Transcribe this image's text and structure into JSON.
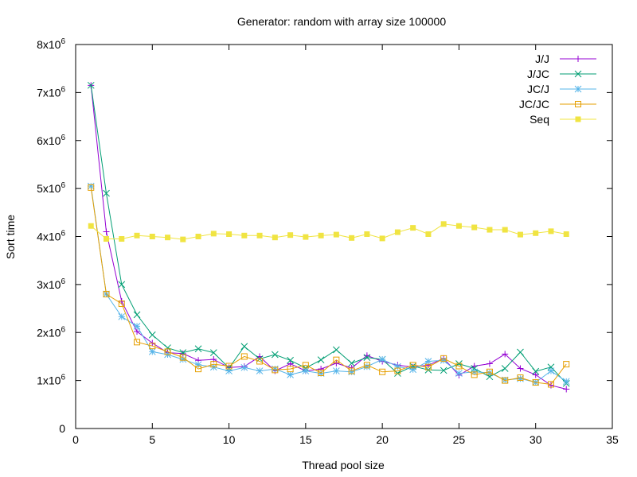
{
  "chart_data": {
    "type": "line",
    "title": "Generator: random with array size 100000",
    "xlabel": "Thread pool size",
    "ylabel": "Sort time",
    "xlim": [
      0,
      35
    ],
    "ylim": [
      0,
      8000000
    ],
    "grid": false,
    "legend_position": "top-right",
    "x_ticks": [
      0,
      5,
      10,
      15,
      20,
      25,
      30,
      35
    ],
    "y_ticks": [
      {
        "value": 0,
        "mantissa": "0",
        "exp": ""
      },
      {
        "value": 1000000,
        "mantissa": "1x10",
        "exp": "6"
      },
      {
        "value": 2000000,
        "mantissa": "2x10",
        "exp": "6"
      },
      {
        "value": 3000000,
        "mantissa": "3x10",
        "exp": "6"
      },
      {
        "value": 4000000,
        "mantissa": "4x10",
        "exp": "6"
      },
      {
        "value": 5000000,
        "mantissa": "5x10",
        "exp": "6"
      },
      {
        "value": 6000000,
        "mantissa": "6x10",
        "exp": "6"
      },
      {
        "value": 7000000,
        "mantissa": "7x10",
        "exp": "6"
      },
      {
        "value": 8000000,
        "mantissa": "8x10",
        "exp": "6"
      }
    ],
    "x": [
      1,
      2,
      3,
      4,
      5,
      6,
      7,
      8,
      9,
      10,
      11,
      12,
      13,
      14,
      15,
      16,
      17,
      18,
      19,
      20,
      21,
      22,
      23,
      24,
      25,
      26,
      27,
      28,
      29,
      30,
      31,
      32
    ],
    "series": [
      {
        "name": "J/J",
        "color": "#9400d3",
        "marker": "plus",
        "values": [
          7150000,
          4100000,
          2650000,
          2020000,
          1780000,
          1580000,
          1560000,
          1420000,
          1440000,
          1270000,
          1290000,
          1500000,
          1200000,
          1350000,
          1200000,
          1240000,
          1360000,
          1260000,
          1520000,
          1400000,
          1320000,
          1280000,
          1320000,
          1460000,
          1110000,
          1300000,
          1350000,
          1550000,
          1250000,
          1120000,
          900000,
          820000
        ]
      },
      {
        "name": "J/JC",
        "color": "#009e73",
        "marker": "cross",
        "values": [
          7150000,
          4900000,
          3000000,
          2370000,
          1950000,
          1680000,
          1580000,
          1660000,
          1580000,
          1260000,
          1710000,
          1450000,
          1540000,
          1420000,
          1260000,
          1430000,
          1640000,
          1360000,
          1480000,
          1440000,
          1150000,
          1300000,
          1220000,
          1210000,
          1350000,
          1250000,
          1080000,
          1250000,
          1590000,
          1190000,
          1280000,
          940000
        ]
      },
      {
        "name": "JC/J",
        "color": "#56b4e9",
        "marker": "star",
        "values": [
          5050000,
          2800000,
          2330000,
          2130000,
          1600000,
          1540000,
          1440000,
          1330000,
          1280000,
          1200000,
          1270000,
          1200000,
          1240000,
          1120000,
          1200000,
          1150000,
          1200000,
          1180000,
          1290000,
          1440000,
          1290000,
          1230000,
          1400000,
          1420000,
          1150000,
          1180000,
          1160000,
          1010000,
          1040000,
          960000,
          1200000,
          980000
        ]
      },
      {
        "name": "JC/JC",
        "color": "#e69f00",
        "marker": "open-square",
        "values": [
          5020000,
          2800000,
          2600000,
          1800000,
          1720000,
          1600000,
          1480000,
          1240000,
          1340000,
          1300000,
          1500000,
          1400000,
          1220000,
          1240000,
          1320000,
          1160000,
          1430000,
          1200000,
          1320000,
          1180000,
          1200000,
          1320000,
          1280000,
          1460000,
          1300000,
          1120000,
          1180000,
          1000000,
          1060000,
          960000,
          920000,
          1340000
        ]
      },
      {
        "name": "Seq",
        "color": "#f0e442",
        "marker": "filled-square",
        "values": [
          4220000,
          3950000,
          3950000,
          4020000,
          4000000,
          3980000,
          3940000,
          4000000,
          4060000,
          4050000,
          4020000,
          4020000,
          3980000,
          4030000,
          3990000,
          4020000,
          4040000,
          3970000,
          4050000,
          3960000,
          4090000,
          4180000,
          4050000,
          4260000,
          4220000,
          4190000,
          4140000,
          4140000,
          4040000,
          4070000,
          4110000,
          4050000
        ]
      }
    ]
  }
}
